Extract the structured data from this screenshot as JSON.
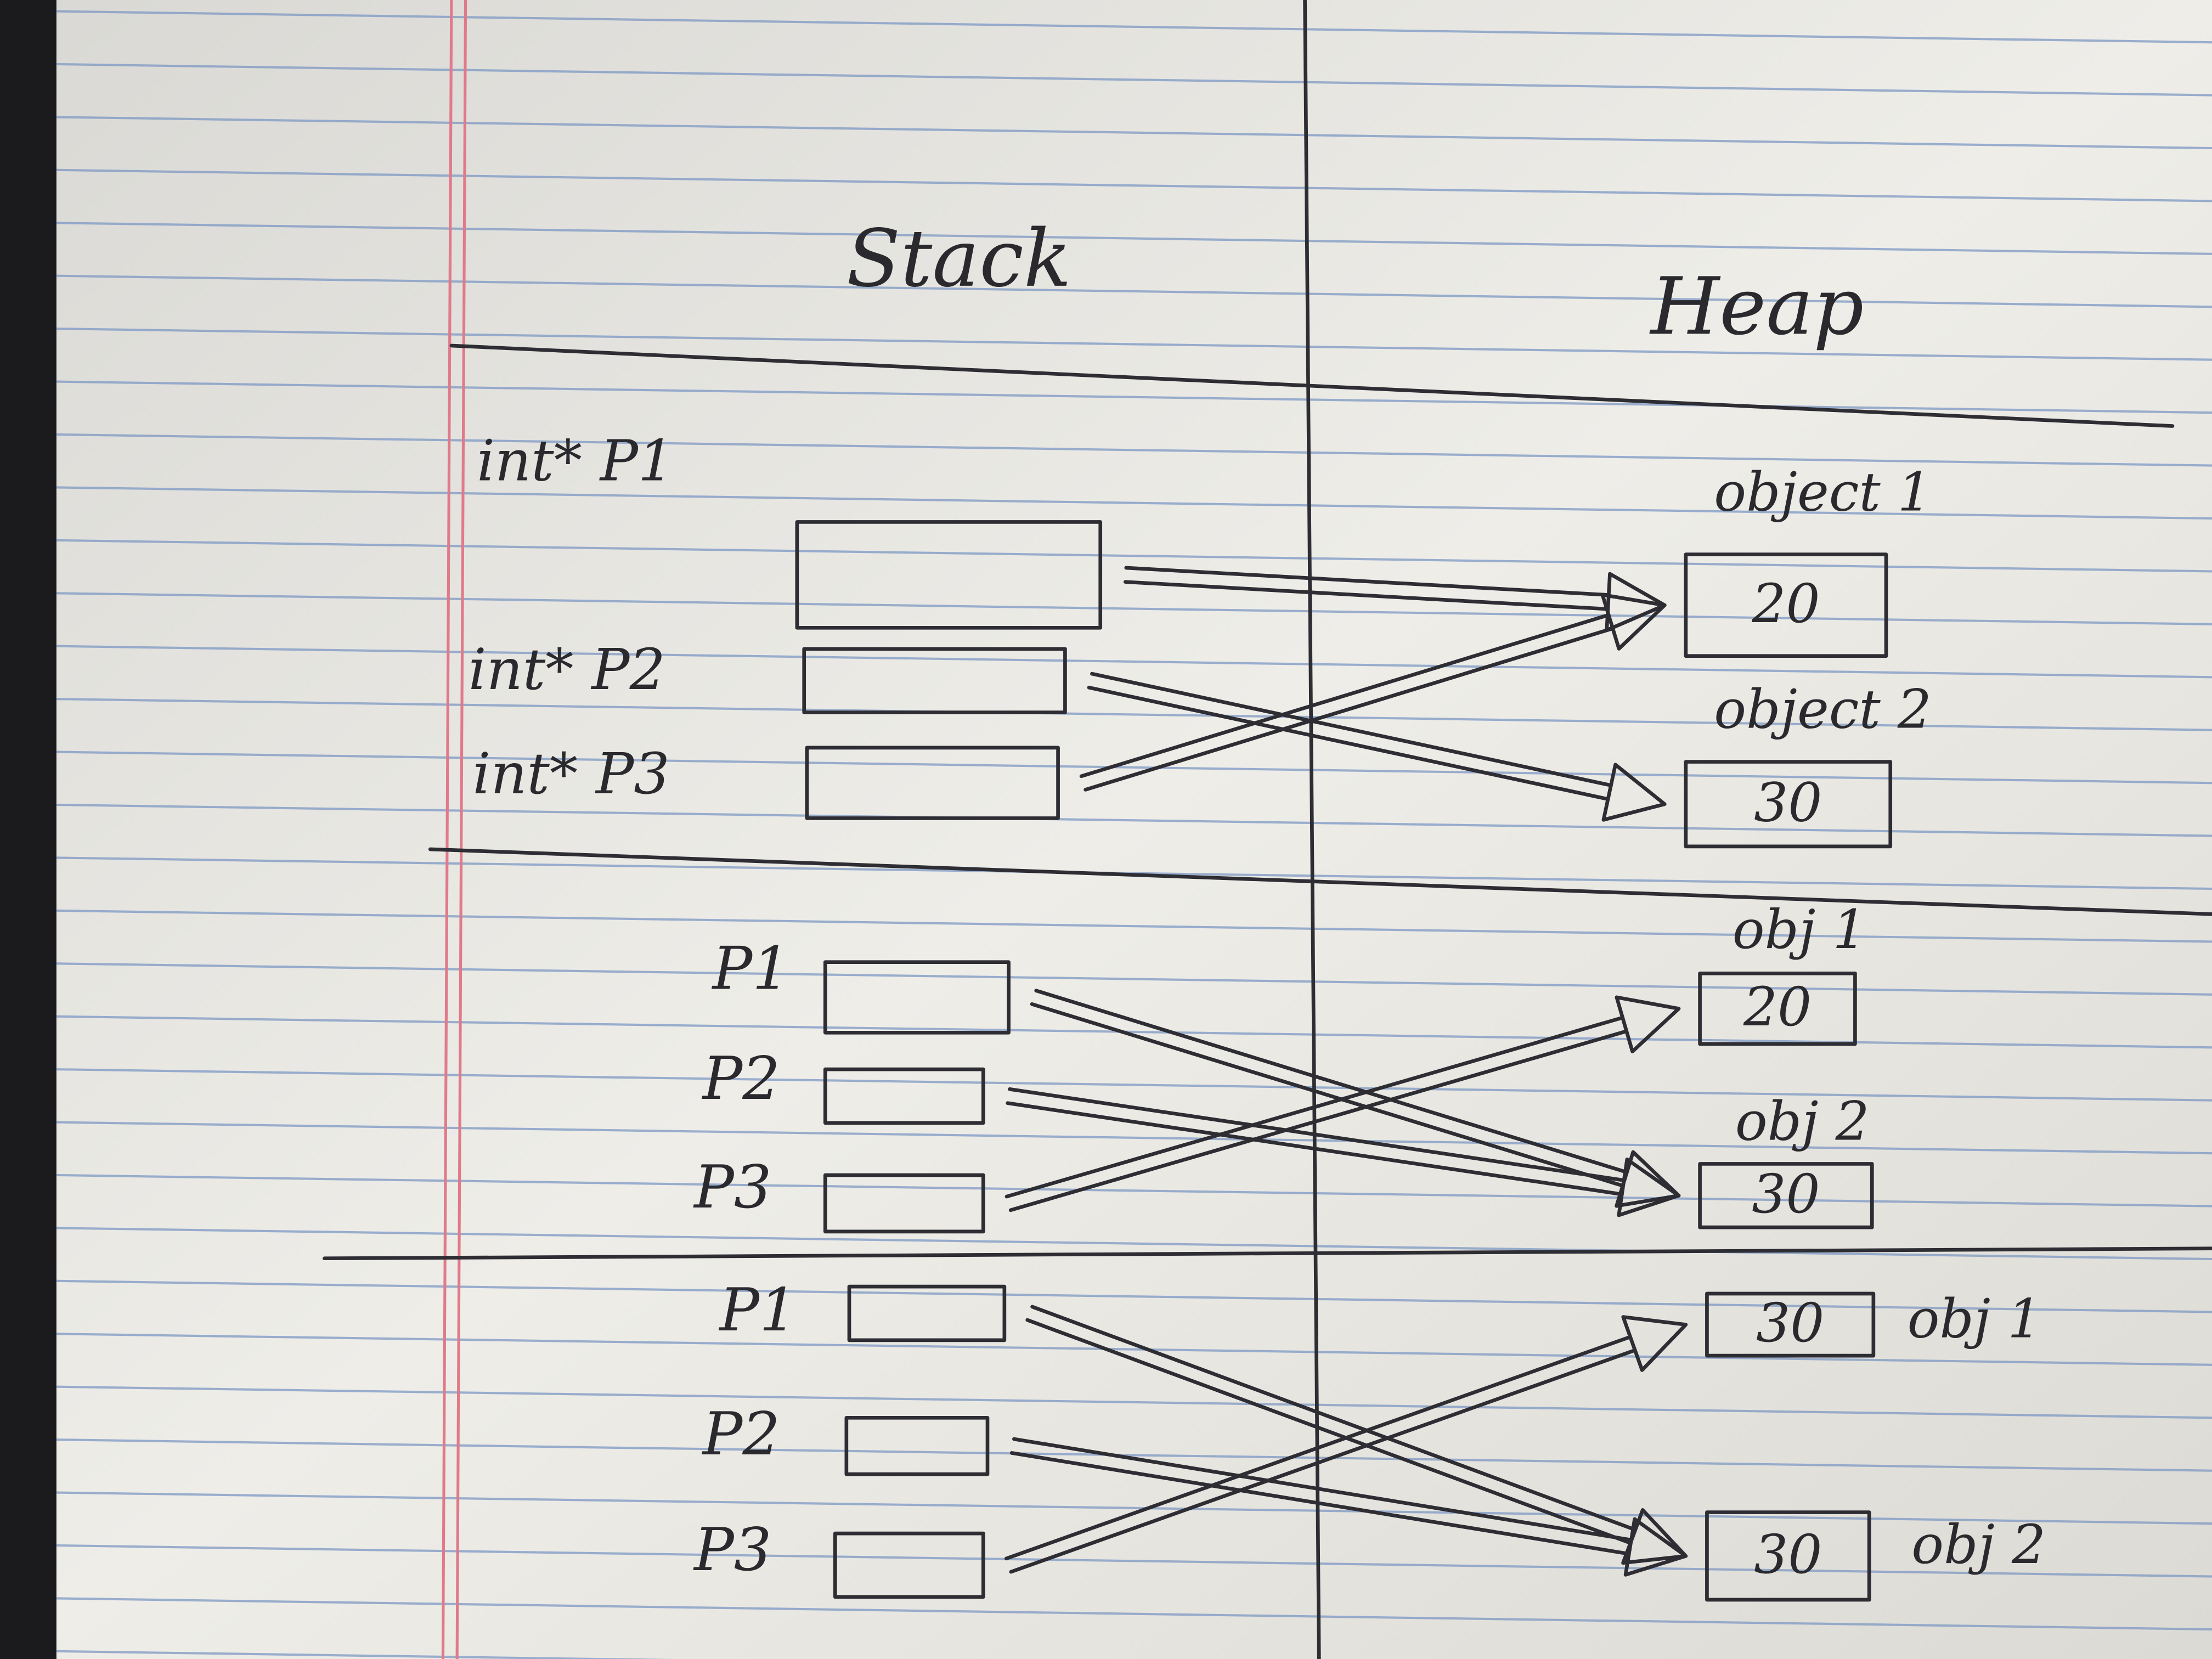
{
  "headers": {
    "stack": "Stack",
    "heap": "Heap"
  },
  "sections": [
    {
      "pointers": [
        "int* P1",
        "int* P2",
        "int* P3"
      ],
      "objects": [
        {
          "label": "object 1",
          "value": 20
        },
        {
          "label": "object 2",
          "value": 30
        }
      ]
    },
    {
      "pointers": [
        "P1",
        "P2",
        "P3"
      ],
      "objects": [
        {
          "label": "obj 1",
          "value": 20
        },
        {
          "label": "obj 2",
          "value": 30
        }
      ]
    },
    {
      "pointers": [
        "P1",
        "P2",
        "P3"
      ],
      "objects": [
        {
          "label": "obj 1",
          "value": 30
        },
        {
          "label": "obj 2",
          "value": 30
        }
      ]
    }
  ]
}
